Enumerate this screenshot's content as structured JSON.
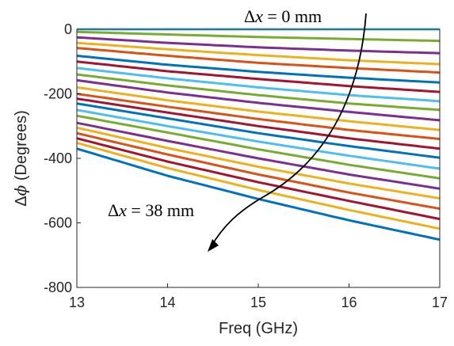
{
  "chart_data": {
    "type": "line",
    "title": "",
    "xlabel": "Freq (GHz)",
    "ylabel_prefix": "Δ",
    "ylabel_symbol": "ϕ",
    "ylabel_suffix": " (Degrees)",
    "xlim": [
      13,
      17
    ],
    "ylim": [
      -800,
      0
    ],
    "xticks": [
      "13",
      "14",
      "15",
      "16",
      "17"
    ],
    "yticks": [
      "0",
      "-200",
      "-400",
      "-600",
      "-800"
    ],
    "grid": false,
    "x": [
      13,
      14,
      15,
      16,
      17
    ],
    "annotations": [
      {
        "prefix": "Δ",
        "var": "x",
        "rest": " = 0 mm"
      },
      {
        "prefix": "Δ",
        "var": "x",
        "rest": " = 38 mm"
      }
    ],
    "series": [
      {
        "color": "#4DBEEE",
        "values": [
          0,
          0,
          0,
          0,
          0
        ]
      },
      {
        "color": "#77AC30",
        "values": [
          -8,
          -16,
          -24,
          -30,
          -36
        ]
      },
      {
        "color": "#7E2F8E",
        "values": [
          -25,
          -42,
          -56,
          -66,
          -74
        ]
      },
      {
        "color": "#EDB120",
        "values": [
          -42,
          -62,
          -80,
          -96,
          -108
        ]
      },
      {
        "color": "#D95319",
        "values": [
          -58,
          -82,
          -104,
          -120,
          -134
        ]
      },
      {
        "color": "#0072BD",
        "values": [
          -82,
          -110,
          -132,
          -150,
          -165
        ]
      },
      {
        "color": "#A2142F",
        "values": [
          -100,
          -130,
          -154,
          -176,
          -194
        ]
      },
      {
        "color": "#4DBEEE",
        "values": [
          -120,
          -152,
          -180,
          -204,
          -223
        ]
      },
      {
        "color": "#77AC30",
        "values": [
          -140,
          -174,
          -204,
          -230,
          -250
        ]
      },
      {
        "color": "#7E2F8E",
        "values": [
          -158,
          -196,
          -228,
          -256,
          -282
        ]
      },
      {
        "color": "#EDB120",
        "values": [
          -180,
          -220,
          -255,
          -285,
          -312
        ]
      },
      {
        "color": "#D95319",
        "values": [
          -200,
          -240,
          -278,
          -312,
          -340
        ]
      },
      {
        "color": "#A2142F",
        "values": [
          -215,
          -258,
          -300,
          -338,
          -370
        ]
      },
      {
        "color": "#0072BD",
        "values": [
          -230,
          -276,
          -322,
          -362,
          -398
        ]
      },
      {
        "color": "#4DBEEE",
        "values": [
          -250,
          -300,
          -348,
          -392,
          -432
        ]
      },
      {
        "color": "#77AC30",
        "values": [
          -268,
          -320,
          -372,
          -420,
          -462
        ]
      },
      {
        "color": "#7E2F8E",
        "values": [
          -290,
          -346,
          -400,
          -450,
          -494
        ]
      },
      {
        "color": "#EDB120",
        "values": [
          -305,
          -368,
          -426,
          -478,
          -524
        ]
      },
      {
        "color": "#D95319",
        "values": [
          -322,
          -388,
          -450,
          -506,
          -556
        ]
      },
      {
        "color": "#A2142F",
        "values": [
          -338,
          -410,
          -474,
          -532,
          -588
        ]
      },
      {
        "color": "#EDB120",
        "values": [
          -352,
          -430,
          -498,
          -560,
          -618
        ]
      },
      {
        "color": "#0072BD",
        "values": [
          -370,
          -454,
          -526,
          -592,
          -652
        ]
      }
    ]
  }
}
